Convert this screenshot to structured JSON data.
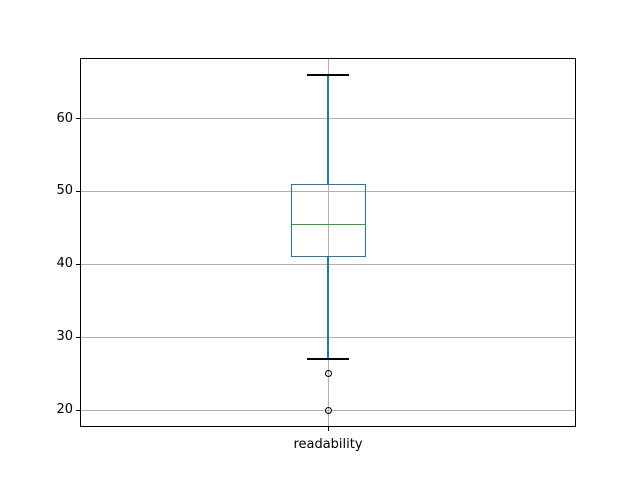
{
  "figure": {
    "background": "#ffffff"
  },
  "chart_data": {
    "type": "box",
    "title": "",
    "xlabel": "",
    "ylabel": "",
    "categories": [
      "readability"
    ],
    "series": [
      {
        "name": "readability",
        "whisker_low": 27,
        "q1": 41,
        "median": 45.5,
        "q3": 51,
        "whisker_high": 66,
        "outliers": [
          25,
          20
        ]
      }
    ],
    "yticks": [
      20,
      30,
      40,
      50,
      60
    ],
    "ylim": [
      17.7,
      68.3
    ],
    "grid": true,
    "legend": "none",
    "colors": {
      "box": "#1f77b4",
      "whisker": "#1f77b4",
      "median": "#2ca02c",
      "cap": "#000000",
      "flier": "#000000",
      "grid": "#b0b0b0",
      "spine": "#000000",
      "tick_label": "#000000"
    }
  }
}
